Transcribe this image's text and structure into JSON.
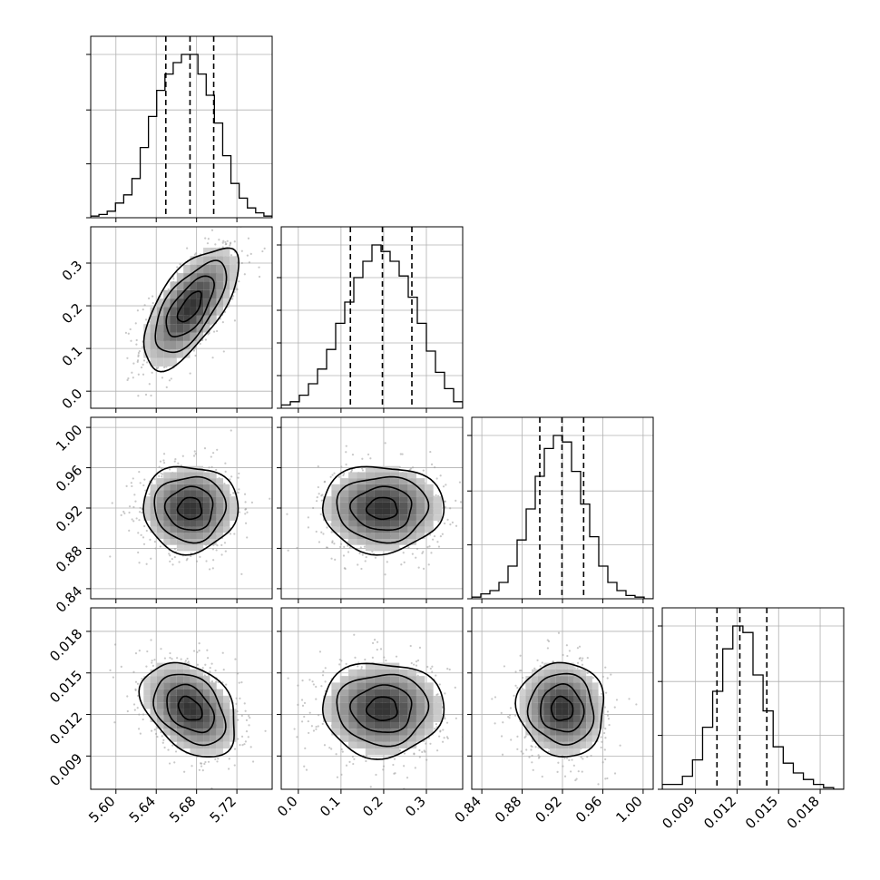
{
  "chart_data": {
    "type": "corner",
    "title": "",
    "parameters": [
      {
        "index": 0,
        "range": [
          5.575,
          5.755
        ],
        "median": 5.6735,
        "quantiles": [
          5.6495,
          5.6735,
          5.697
        ],
        "ticks": [
          5.6,
          5.64,
          5.68,
          5.72
        ],
        "tick_labels": [
          "5.60",
          "5.64",
          "5.68",
          "5.72"
        ],
        "histogram_counts": [
          1,
          2,
          4,
          9,
          14,
          24,
          43,
          62,
          78,
          88,
          95,
          100,
          100,
          88,
          75,
          58,
          38,
          21,
          12,
          6,
          3,
          1
        ],
        "marginal_ticks": [
          0,
          33,
          66,
          100
        ]
      },
      {
        "index": 1,
        "range": [
          -0.04,
          0.385
        ],
        "median": 0.197,
        "quantiles": [
          0.122,
          0.197,
          0.266
        ],
        "ticks": [
          0.0,
          0.1,
          0.2,
          0.3
        ],
        "tick_labels": [
          "0.0",
          "0.1",
          "0.2",
          "0.3"
        ],
        "histogram_counts": [
          2,
          4,
          8,
          15,
          24,
          36,
          52,
          65,
          80,
          90,
          100,
          96,
          90,
          81,
          68,
          52,
          35,
          22,
          12,
          4
        ],
        "marginal_ticks": [
          20,
          40,
          60,
          80,
          100
        ]
      },
      {
        "index": 2,
        "range": [
          0.83,
          1.01
        ],
        "median": 0.9195,
        "quantiles": [
          0.8975,
          0.9195,
          0.941
        ],
        "ticks": [
          0.84,
          0.88,
          0.92,
          0.96,
          1.0
        ],
        "tick_labels": [
          "0.84",
          "0.88",
          "0.92",
          "0.96",
          "1.00"
        ],
        "histogram_counts": [
          1,
          3,
          5,
          10,
          20,
          36,
          55,
          75,
          92,
          100,
          96,
          78,
          58,
          38,
          20,
          10,
          5,
          2,
          1,
          0
        ],
        "marginal_ticks": [
          33,
          66,
          100
        ]
      },
      {
        "index": 3,
        "range": [
          0.0066,
          0.0197
        ],
        "median": 0.0122,
        "quantiles": [
          0.01055,
          0.0122,
          0.01415
        ],
        "ticks": [
          0.009,
          0.012,
          0.015,
          0.018
        ],
        "tick_labels": [
          "0.009",
          "0.012",
          "0.015",
          "0.018"
        ],
        "histogram_counts": [
          3,
          3,
          8,
          18,
          38,
          60,
          86,
          100,
          96,
          70,
          48,
          26,
          16,
          10,
          6,
          3,
          1,
          0
        ],
        "marginal_ticks": [
          33,
          66,
          100
        ]
      }
    ],
    "pairs": [
      {
        "x": 0,
        "y": 1,
        "center": [
          5.6735,
          0.197
        ],
        "sigma": [
          0.0235,
          0.071
        ],
        "correlation": 0.65
      },
      {
        "x": 0,
        "y": 2,
        "center": [
          5.6735,
          0.9195
        ],
        "sigma": [
          0.0235,
          0.0215
        ],
        "correlation": 0.0
      },
      {
        "x": 1,
        "y": 2,
        "center": [
          0.197,
          0.9195
        ],
        "sigma": [
          0.071,
          0.0215
        ],
        "correlation": 0.0
      },
      {
        "x": 0,
        "y": 3,
        "center": [
          5.6735,
          0.0124
        ],
        "sigma": [
          0.0235,
          0.0017
        ],
        "correlation": -0.35
      },
      {
        "x": 1,
        "y": 3,
        "center": [
          0.197,
          0.0124
        ],
        "sigma": [
          0.071,
          0.0017
        ],
        "correlation": 0.0
      },
      {
        "x": 2,
        "y": 3,
        "center": [
          0.9195,
          0.0124
        ],
        "sigma": [
          0.0215,
          0.0017
        ],
        "correlation": -0.05
      }
    ],
    "contour_levels_sigma": [
      0.5,
      1.0,
      1.5,
      2.0
    ],
    "grid": true,
    "scatter_color": "#9a9a9a",
    "density_color": "#000000",
    "line_color": "#000000"
  }
}
